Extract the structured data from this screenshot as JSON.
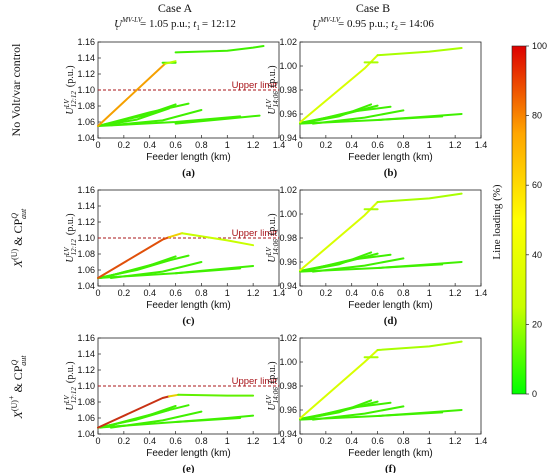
{
  "header": {
    "caseA": "Case A",
    "caseB": "Case B",
    "subA_pre": "U",
    "subA_sup": "MV-LV",
    "subA_sub": "t",
    "subA_post": "= 1.05 p.u.; ",
    "subA_t": "t",
    "subA_tsub": "1",
    "subA_time": "= 12:12",
    "subB_pre": "U",
    "subB_sup": "MV-LV",
    "subB_sub": "t",
    "subB_post": "= 0.95 p.u.; ",
    "subB_t": "t",
    "subB_tsub": "2",
    "subB_time": "= 14:06"
  },
  "rows": [
    {
      "label": "No Volt/var control"
    },
    {
      "label": "X",
      "sup": "(U)",
      "tail": " & CP",
      "tail_sup": "Q",
      "tail_sub": "aut"
    },
    {
      "label": "X",
      "sup": "(U)",
      "mid": "+",
      "tail": " & CP",
      "tail_sup": "Q",
      "tail_sub": "aut"
    }
  ],
  "colorbar": {
    "label": "Line loading   (%)",
    "ticks": [
      "0",
      "20",
      "40",
      "60",
      "80",
      "100"
    ],
    "stops": [
      "#00ff00",
      "#c8ff00",
      "#ffff00",
      "#ffa500",
      "#dd0000"
    ]
  },
  "chart_data": [
    {
      "id": "a",
      "panel_label": "(a)",
      "type": "line",
      "xlabel": "Feeder length (km)",
      "ylabel": "U",
      "ylabel_sup": "LV",
      "ylabel_sub": "12:12",
      "ylabel_unit": "(p.u.)",
      "xlim": [
        0,
        1.4
      ],
      "ylim": [
        1.04,
        1.16
      ],
      "xticks": [
        "0",
        "0.2",
        "0.4",
        "0.6",
        "0.8",
        "1",
        "1.2",
        "1.4"
      ],
      "yticks": [
        "1.04",
        "1.06",
        "1.08",
        "1.10",
        "1.12",
        "1.14",
        "1.16"
      ],
      "limit": {
        "value": 1.1,
        "label": "Upper limit"
      },
      "series": [
        {
          "color": "#f5a000",
          "x": [
            0,
            0.5,
            0.52
          ],
          "y": [
            1.055,
            1.13,
            1.133
          ]
        },
        {
          "color": "#b8ff00",
          "x": [
            0.52,
            0.6
          ],
          "y": [
            1.133,
            1.136
          ]
        },
        {
          "color": "#40f000",
          "x": [
            0.6,
            1.0,
            1.2,
            1.28
          ],
          "y": [
            1.147,
            1.149,
            1.153,
            1.155
          ]
        },
        {
          "color": "#40f000",
          "x": [
            0.5,
            0.6
          ],
          "y": [
            1.134,
            1.134
          ]
        },
        {
          "color": "#40f000",
          "x": [
            0,
            0.3,
            0.55
          ],
          "y": [
            1.055,
            1.063,
            1.077
          ]
        },
        {
          "color": "#40f000",
          "x": [
            0.02,
            0.35,
            0.6
          ],
          "y": [
            1.056,
            1.068,
            1.082
          ]
        },
        {
          "color": "#40f000",
          "x": [
            0.05,
            0.4,
            0.7
          ],
          "y": [
            1.057,
            1.072,
            1.083
          ]
        },
        {
          "color": "#40f000",
          "x": [
            0.1,
            0.5,
            0.8
          ],
          "y": [
            1.056,
            1.062,
            1.075
          ]
        },
        {
          "color": "#40f000",
          "x": [
            0,
            0.6,
            1.1
          ],
          "y": [
            1.055,
            1.06,
            1.067
          ]
        },
        {
          "color": "#40f000",
          "x": [
            0.6,
            1.0,
            1.25
          ],
          "y": [
            1.058,
            1.064,
            1.068
          ]
        }
      ]
    },
    {
      "id": "b",
      "panel_label": "(b)",
      "type": "line",
      "xlabel": "Feeder length (km)",
      "ylabel": "U",
      "ylabel_sup": "LV",
      "ylabel_sub": "14:06",
      "ylabel_unit": "(p.u.)",
      "xlim": [
        0,
        1.4
      ],
      "ylim": [
        0.94,
        1.02
      ],
      "xticks": [
        "0",
        "0.2",
        "0.4",
        "0.6",
        "0.8",
        "1",
        "1.2",
        "1.4"
      ],
      "yticks": [
        "0.94",
        "0.96",
        "0.98",
        "1.00",
        "1.02"
      ],
      "series": [
        {
          "color": "#d8ff00",
          "x": [
            0,
            0.5,
            0.6
          ],
          "y": [
            0.953,
            0.998,
            1.009
          ]
        },
        {
          "color": "#a8ff00",
          "x": [
            0.6,
            1.0,
            1.25
          ],
          "y": [
            1.009,
            1.012,
            1.015
          ]
        },
        {
          "color": "#a8ff00",
          "x": [
            0.5,
            0.6
          ],
          "y": [
            1.003,
            1.003
          ]
        },
        {
          "color": "#40f000",
          "x": [
            0,
            0.3,
            0.55
          ],
          "y": [
            0.952,
            0.958,
            0.968
          ]
        },
        {
          "color": "#40f000",
          "x": [
            0.02,
            0.35,
            0.6
          ],
          "y": [
            0.953,
            0.96,
            0.967
          ]
        },
        {
          "color": "#40f000",
          "x": [
            0.05,
            0.4,
            0.7
          ],
          "y": [
            0.953,
            0.962,
            0.966
          ]
        },
        {
          "color": "#40f000",
          "x": [
            0.1,
            0.5,
            0.8
          ],
          "y": [
            0.952,
            0.957,
            0.963
          ]
        },
        {
          "color": "#40f000",
          "x": [
            0,
            0.6,
            1.1
          ],
          "y": [
            0.952,
            0.955,
            0.958
          ]
        },
        {
          "color": "#40f000",
          "x": [
            0.6,
            1.0,
            1.25
          ],
          "y": [
            0.955,
            0.958,
            0.96
          ]
        }
      ]
    },
    {
      "id": "c",
      "panel_label": "(c)",
      "type": "line",
      "xlabel": "Feeder length (km)",
      "ylabel": "U",
      "ylabel_sup": "LV",
      "ylabel_sub": "12:12",
      "ylabel_unit": "(p.u.)",
      "xlim": [
        0,
        1.4
      ],
      "ylim": [
        1.04,
        1.16
      ],
      "xticks": [
        "0",
        "0.2",
        "0.4",
        "0.6",
        "0.8",
        "1",
        "1.2",
        "1.4"
      ],
      "yticks": [
        "1.04",
        "1.06",
        "1.08",
        "1.10",
        "1.12",
        "1.14",
        "1.16"
      ],
      "limit": {
        "value": 1.1,
        "label": "Upper limit"
      },
      "series": [
        {
          "color": "#e0500a",
          "x": [
            0,
            0.5,
            0.55
          ],
          "y": [
            1.05,
            1.098,
            1.101
          ]
        },
        {
          "color": "#f0d000",
          "x": [
            0.55,
            0.65
          ],
          "y": [
            1.101,
            1.106
          ]
        },
        {
          "color": "#c8ff00",
          "x": [
            0.65,
            1.0,
            1.2
          ],
          "y": [
            1.106,
            1.097,
            1.091
          ]
        },
        {
          "color": "#40f000",
          "x": [
            0,
            0.3,
            0.55
          ],
          "y": [
            1.05,
            1.06,
            1.072
          ]
        },
        {
          "color": "#40f000",
          "x": [
            0.02,
            0.35,
            0.6
          ],
          "y": [
            1.05,
            1.063,
            1.077
          ]
        },
        {
          "color": "#40f000",
          "x": [
            0.05,
            0.4,
            0.7
          ],
          "y": [
            1.051,
            1.066,
            1.078
          ]
        },
        {
          "color": "#40f000",
          "x": [
            0.1,
            0.5,
            0.8
          ],
          "y": [
            1.05,
            1.058,
            1.07
          ]
        },
        {
          "color": "#40f000",
          "x": [
            0,
            0.6,
            1.1
          ],
          "y": [
            1.05,
            1.056,
            1.062
          ]
        },
        {
          "color": "#40f000",
          "x": [
            0.6,
            1.0,
            1.2
          ],
          "y": [
            1.056,
            1.062,
            1.065
          ]
        }
      ]
    },
    {
      "id": "d",
      "panel_label": "(d)",
      "type": "line",
      "xlabel": "Feeder length (km)",
      "ylabel": "U",
      "ylabel_sup": "LV",
      "ylabel_sub": "14:06",
      "ylabel_unit": "(p.u.)",
      "xlim": [
        0,
        1.4
      ],
      "ylim": [
        0.94,
        1.02
      ],
      "xticks": [
        "0",
        "0.2",
        "0.4",
        "0.6",
        "0.8",
        "1",
        "1.2",
        "1.4"
      ],
      "yticks": [
        "0.94",
        "0.96",
        "0.98",
        "1.00",
        "1.02"
      ],
      "series": [
        {
          "color": "#d8ff00",
          "x": [
            0,
            0.5,
            0.6
          ],
          "y": [
            0.953,
            0.999,
            1.01
          ]
        },
        {
          "color": "#a8ff00",
          "x": [
            0.6,
            1.0,
            1.25
          ],
          "y": [
            1.01,
            1.013,
            1.017
          ]
        },
        {
          "color": "#a8ff00",
          "x": [
            0.5,
            0.6
          ],
          "y": [
            1.004,
            1.004
          ]
        },
        {
          "color": "#40f000",
          "x": [
            0,
            0.3,
            0.55
          ],
          "y": [
            0.952,
            0.958,
            0.968
          ]
        },
        {
          "color": "#40f000",
          "x": [
            0.02,
            0.35,
            0.6
          ],
          "y": [
            0.953,
            0.96,
            0.967
          ]
        },
        {
          "color": "#40f000",
          "x": [
            0.05,
            0.4,
            0.7
          ],
          "y": [
            0.953,
            0.962,
            0.966
          ]
        },
        {
          "color": "#40f000",
          "x": [
            0.1,
            0.5,
            0.8
          ],
          "y": [
            0.952,
            0.957,
            0.963
          ]
        },
        {
          "color": "#40f000",
          "x": [
            0,
            0.6,
            1.1
          ],
          "y": [
            0.952,
            0.955,
            0.958
          ]
        },
        {
          "color": "#40f000",
          "x": [
            0.6,
            1.0,
            1.25
          ],
          "y": [
            0.955,
            0.958,
            0.96
          ]
        }
      ]
    },
    {
      "id": "e",
      "panel_label": "(e)",
      "type": "line",
      "xlabel": "Feeder length (km)",
      "ylabel": "U",
      "ylabel_sup": "LV",
      "ylabel_sub": "12:12",
      "ylabel_unit": "(p.u.)",
      "xlim": [
        0,
        1.4
      ],
      "ylim": [
        1.04,
        1.16
      ],
      "xticks": [
        "0",
        "0.2",
        "0.4",
        "0.6",
        "0.8",
        "1",
        "1.2",
        "1.4"
      ],
      "yticks": [
        "1.04",
        "1.06",
        "1.08",
        "1.10",
        "1.12",
        "1.14",
        "1.16"
      ],
      "limit": {
        "value": 1.1,
        "label": "Upper limit"
      },
      "series": [
        {
          "color": "#c83214",
          "x": [
            0,
            0.5,
            0.55
          ],
          "y": [
            1.048,
            1.085,
            1.087
          ]
        },
        {
          "color": "#e8d000",
          "x": [
            0.55,
            0.62
          ],
          "y": [
            1.087,
            1.089
          ]
        },
        {
          "color": "#60f000",
          "x": [
            0.62,
            1.0,
            1.2
          ],
          "y": [
            1.089,
            1.088,
            1.088
          ]
        },
        {
          "color": "#40f000",
          "x": [
            0,
            0.3,
            0.55
          ],
          "y": [
            1.048,
            1.058,
            1.07
          ]
        },
        {
          "color": "#40f000",
          "x": [
            0.02,
            0.35,
            0.6
          ],
          "y": [
            1.048,
            1.061,
            1.075
          ]
        },
        {
          "color": "#40f000",
          "x": [
            0.05,
            0.4,
            0.7
          ],
          "y": [
            1.049,
            1.064,
            1.076
          ]
        },
        {
          "color": "#40f000",
          "x": [
            0.1,
            0.5,
            0.8
          ],
          "y": [
            1.048,
            1.057,
            1.068
          ]
        },
        {
          "color": "#40f000",
          "x": [
            0,
            0.6,
            1.1
          ],
          "y": [
            1.048,
            1.055,
            1.06
          ]
        },
        {
          "color": "#40f000",
          "x": [
            0.6,
            1.0,
            1.2
          ],
          "y": [
            1.055,
            1.06,
            1.063
          ]
        }
      ]
    },
    {
      "id": "f",
      "panel_label": "(f)",
      "type": "line",
      "xlabel": "Feeder length (km)",
      "ylabel": "U",
      "ylabel_sup": "LV",
      "ylabel_sub": "14:06",
      "ylabel_unit": "(p.u.)",
      "xlim": [
        0,
        1.4
      ],
      "ylim": [
        0.94,
        1.02
      ],
      "xticks": [
        "0",
        "0.2",
        "0.4",
        "0.6",
        "0.8",
        "1",
        "1.2",
        "1.4"
      ],
      "yticks": [
        "0.94",
        "0.96",
        "0.98",
        "1.00",
        "1.02"
      ],
      "series": [
        {
          "color": "#d8ff00",
          "x": [
            0,
            0.5,
            0.6
          ],
          "y": [
            0.953,
            1.0,
            1.01
          ]
        },
        {
          "color": "#a8ff00",
          "x": [
            0.6,
            1.0,
            1.25
          ],
          "y": [
            1.01,
            1.013,
            1.017
          ]
        },
        {
          "color": "#a8ff00",
          "x": [
            0.5,
            0.6
          ],
          "y": [
            1.004,
            1.004
          ]
        },
        {
          "color": "#40f000",
          "x": [
            0,
            0.3,
            0.55
          ],
          "y": [
            0.952,
            0.958,
            0.968
          ]
        },
        {
          "color": "#40f000",
          "x": [
            0.02,
            0.35,
            0.6
          ],
          "y": [
            0.953,
            0.96,
            0.967
          ]
        },
        {
          "color": "#40f000",
          "x": [
            0.05,
            0.4,
            0.7
          ],
          "y": [
            0.953,
            0.962,
            0.966
          ]
        },
        {
          "color": "#40f000",
          "x": [
            0.1,
            0.5,
            0.8
          ],
          "y": [
            0.952,
            0.957,
            0.963
          ]
        },
        {
          "color": "#40f000",
          "x": [
            0,
            0.6,
            1.1
          ],
          "y": [
            0.952,
            0.955,
            0.958
          ]
        },
        {
          "color": "#40f000",
          "x": [
            0.6,
            1.0,
            1.25
          ],
          "y": [
            0.955,
            0.958,
            0.96
          ]
        }
      ]
    }
  ]
}
